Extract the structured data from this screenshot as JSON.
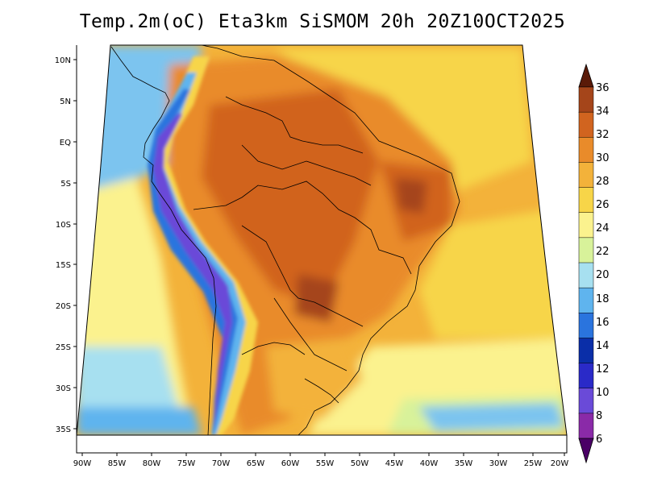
{
  "title": "Temp.2m(oC) Eta3km SiSMOM 20h 20Z10OCT2025",
  "map": {
    "lat_labels": [
      "10N",
      "5N",
      "EQ",
      "5S",
      "10S",
      "15S",
      "20S",
      "25S",
      "30S",
      "35S"
    ],
    "lon_labels": [
      "90W",
      "85W",
      "80W",
      "75W",
      "70W",
      "65W",
      "60W",
      "55W",
      "50W",
      "45W",
      "40W",
      "35W",
      "30W",
      "25W",
      "20W"
    ]
  },
  "colorbar": {
    "levels": [
      "36",
      "34",
      "32",
      "30",
      "28",
      "26",
      "24",
      "22",
      "20",
      "18",
      "16",
      "14",
      "12",
      "10",
      "8",
      "6"
    ],
    "colors": [
      "#6b2a0e",
      "#a5451a",
      "#d1641f",
      "#e98b2a",
      "#f3b23a",
      "#f7d548",
      "#fbf28e",
      "#d8f29a",
      "#a7e0f0",
      "#5fb4ee",
      "#2a74de",
      "#0a2ea8",
      "#2a2ac8",
      "#6a4ad8",
      "#8a2aa8",
      "#5a0a7a"
    ]
  },
  "icons": {
    "up": "colorbar-max-arrow-icon",
    "down": "colorbar-min-arrow-icon"
  }
}
